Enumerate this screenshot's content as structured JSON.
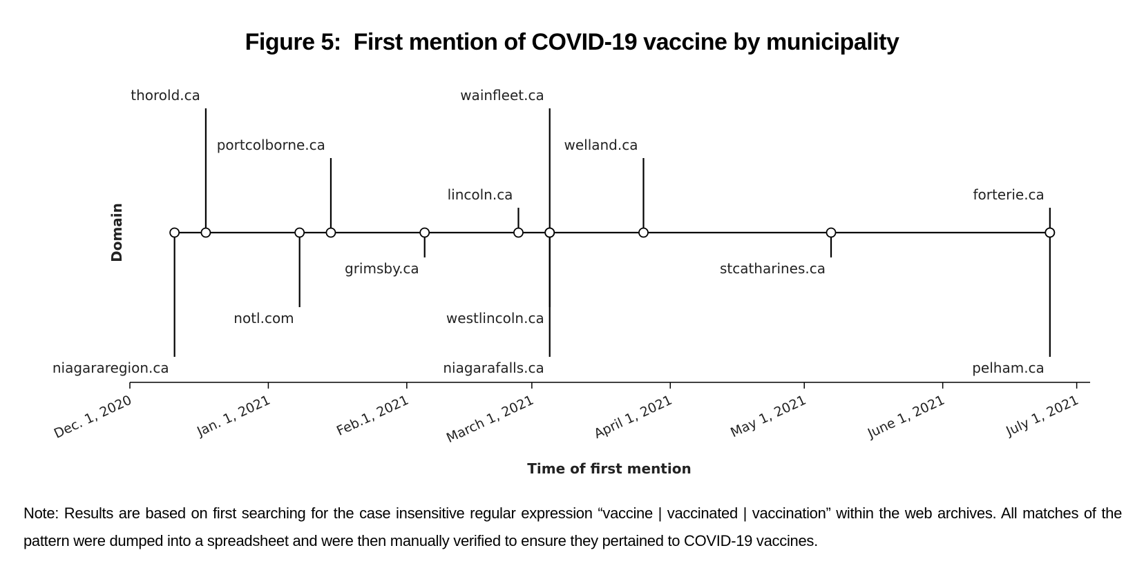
{
  "figure": {
    "title": "Figure 5:  First mention of COVID-19 vaccine by municipality",
    "note": "Note: Results are based on first searching for the case insensitive regular expression “vaccine | vaccinated | vaccination” within the web archives. All matches of the pattern were dumped into a spreadsheet and were then manually verified to ensure they pertained to COVID-19 vaccines."
  },
  "chart_data": {
    "type": "timeline",
    "xlabel": "Time of first mention",
    "ylabel": "Domain",
    "xlim": [
      "2020-12-01",
      "2021-07-04"
    ],
    "x_ticks": [
      {
        "date": "2020-12-01",
        "label": "Dec. 1, 2020"
      },
      {
        "date": "2021-01-01",
        "label": "Jan. 1, 2021"
      },
      {
        "date": "2021-02-01",
        "label": "Feb.1, 2021"
      },
      {
        "date": "2021-03-01",
        "label": "March 1, 2021"
      },
      {
        "date": "2021-04-01",
        "label": "April 1, 2021"
      },
      {
        "date": "2021-05-01",
        "label": "May 1, 2021"
      },
      {
        "date": "2021-06-01",
        "label": "June 1, 2021"
      },
      {
        "date": "2021-07-01",
        "label": "July 1, 2021"
      }
    ],
    "events": [
      {
        "label": "niagararegion.ca",
        "date": "2020-12-11",
        "stem": -5
      },
      {
        "label": "thorold.ca",
        "date": "2020-12-18",
        "stem": 5
      },
      {
        "label": "notl.com",
        "date": "2021-01-08",
        "stem": -3
      },
      {
        "label": "portcolborne.ca",
        "date": "2021-01-15",
        "stem": 3
      },
      {
        "label": "grimsby.ca",
        "date": "2021-02-05",
        "stem": -1
      },
      {
        "label": "lincoln.ca",
        "date": "2021-02-26",
        "stem": 1
      },
      {
        "label": "wainfleet.ca",
        "date": "2021-03-05",
        "stem": 5
      },
      {
        "label": "westlincoln.ca",
        "date": "2021-03-05",
        "stem": -3
      },
      {
        "label": "niagarafalls.ca",
        "date": "2021-03-05",
        "stem": -5
      },
      {
        "label": "welland.ca",
        "date": "2021-03-26",
        "stem": 3
      },
      {
        "label": "stcatharines.ca",
        "date": "2021-05-07",
        "stem": -1
      },
      {
        "label": "forterie.ca",
        "date": "2021-06-25",
        "stem": 1
      },
      {
        "label": "pelham.ca",
        "date": "2021-06-25",
        "stem": -5
      }
    ]
  }
}
